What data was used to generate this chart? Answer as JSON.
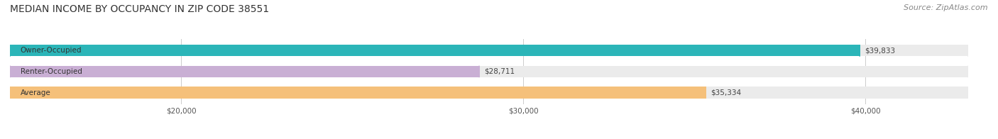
{
  "title": "MEDIAN INCOME BY OCCUPANCY IN ZIP CODE 38551",
  "source": "Source: ZipAtlas.com",
  "categories": [
    "Owner-Occupied",
    "Renter-Occupied",
    "Average"
  ],
  "values": [
    39833,
    28711,
    35334
  ],
  "bar_colors": [
    "#2bb5b8",
    "#c9afd4",
    "#f5c07a"
  ],
  "bar_labels": [
    "$39,833",
    "$28,711",
    "$35,334"
  ],
  "xlim": [
    15000,
    43000
  ],
  "xticks": [
    20000,
    30000,
    40000
  ],
  "xticklabels": [
    "$20,000",
    "$30,000",
    "$40,000"
  ],
  "title_fontsize": 10,
  "source_fontsize": 8,
  "label_fontsize": 7.5,
  "tick_fontsize": 7.5,
  "bar_height": 0.55,
  "fig_bg_color": "#ffffff"
}
